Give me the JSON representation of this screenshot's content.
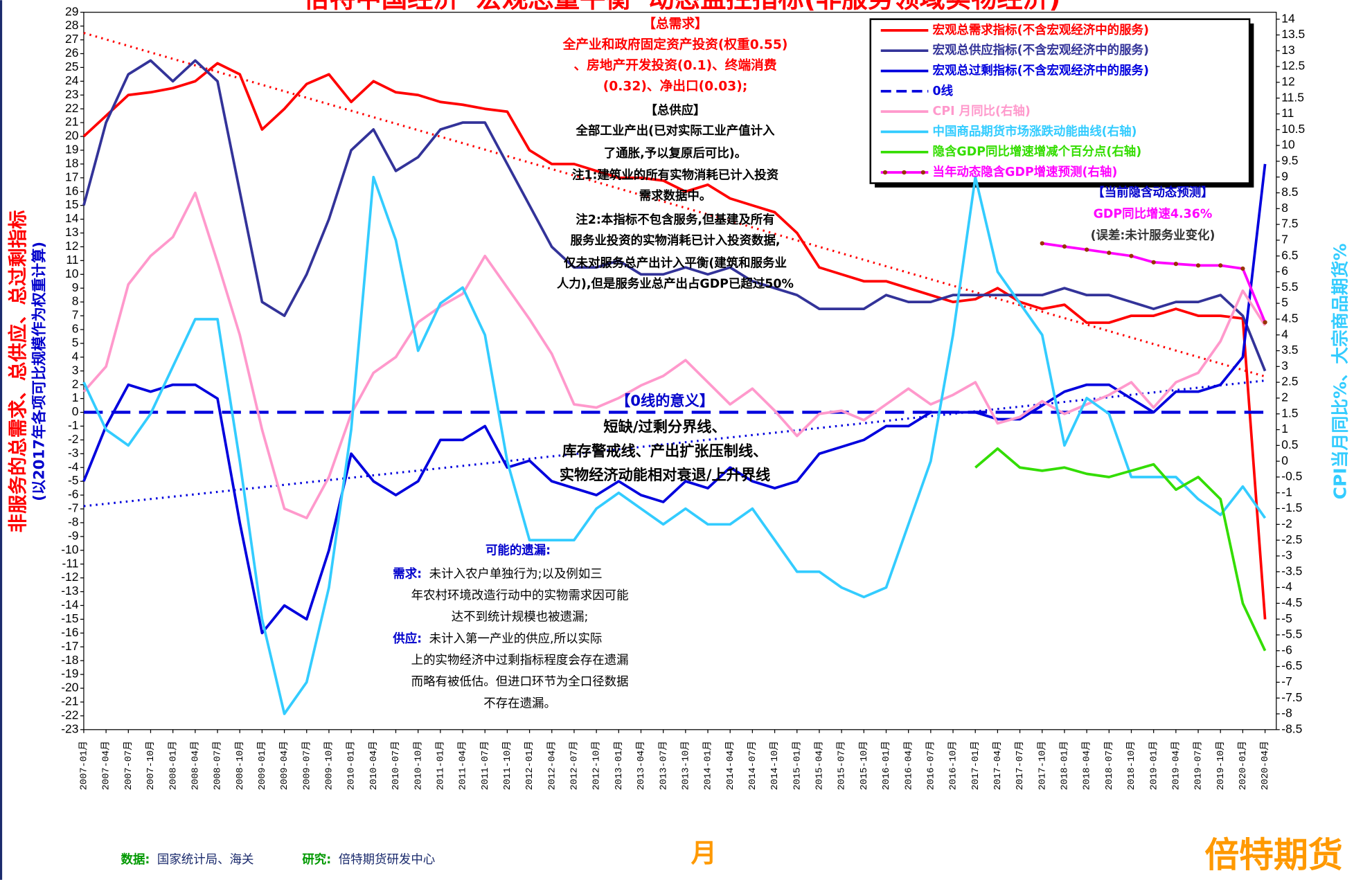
{
  "chart_data": {
    "type": "line",
    "title": "倍特中国经济“宏观总量平衡”动态监控指标(非服务领域实物经济)",
    "y_label": "非服务的总需求、总供应、总过剩指标",
    "y_sublabel": "(以2017年各项可比规模作为权重计算)",
    "y2_label": "CPI当月同比%、大宗商品期货%",
    "x_label": "月",
    "categories": [
      "2007-01月",
      "2007-04月",
      "2007-07月",
      "2007-10月",
      "2008-01月",
      "2008-04月",
      "2008-07月",
      "2008-10月",
      "2009-01月",
      "2009-04月",
      "2009-07月",
      "2009-10月",
      "2010-01月",
      "2010-04月",
      "2010-07月",
      "2010-10月",
      "2011-01月",
      "2011-04月",
      "2011-07月",
      "2011-10月",
      "2012-01月",
      "2012-04月",
      "2012-07月",
      "2012-10月",
      "2013-01月",
      "2013-04月",
      "2013-07月",
      "2013-10月",
      "2014-01月",
      "2014-04月",
      "2014-07月",
      "2014-10月",
      "2015-01月",
      "2015-04月",
      "2015-07月",
      "2015-10月",
      "2016-01月",
      "2016-04月",
      "2016-07月",
      "2016-10月",
      "2017-01月",
      "2017-04月",
      "2017-07月",
      "2017-10月",
      "2018-01月",
      "2018-04月",
      "2018-07月",
      "2018-10月",
      "2019-01月",
      "2019-04月",
      "2019-07月",
      "2019-10月",
      "2020-01月",
      "2020-04月"
    ],
    "ylim": [
      -23,
      29
    ],
    "yticks": [
      -23,
      -22,
      -21,
      -20,
      -19,
      -18,
      -17,
      -16,
      -15,
      -14,
      -13,
      -12,
      -11,
      -10,
      -9,
      -8,
      -7,
      -6,
      -5,
      -4,
      -3,
      -2,
      -1,
      0,
      1,
      2,
      3,
      4,
      5,
      6,
      7,
      8,
      9,
      10,
      11,
      12,
      13,
      14,
      15,
      16,
      17,
      18,
      19,
      20,
      21,
      22,
      23,
      24,
      25,
      26,
      27,
      28,
      29
    ],
    "y2lim": [
      -8.5,
      14
    ],
    "y2ticks": [
      -8.5,
      -8,
      -7.5,
      -7,
      -6.5,
      -6,
      -5.5,
      -5,
      -4.5,
      -4,
      -3.5,
      -3,
      -2.5,
      -2,
      -1.5,
      -1,
      -0.5,
      0,
      0.5,
      1,
      1.5,
      2,
      2.5,
      3,
      3.5,
      4,
      4.5,
      5,
      5.5,
      6,
      6.5,
      7,
      7.5,
      8,
      8.5,
      9,
      9.5,
      10,
      10.5,
      11,
      11.5,
      12,
      12.5,
      13,
      13.5,
      14
    ],
    "series": [
      {
        "name": "宏观总需求指标(不含宏观经济中的服务)",
        "color": "#ff0000",
        "values": [
          20,
          21.5,
          23,
          23.2,
          23.5,
          24,
          25.3,
          24.5,
          20.5,
          22,
          23.8,
          24.5,
          22.5,
          24,
          23.2,
          23,
          22.5,
          22.3,
          22,
          21.8,
          19,
          18,
          18,
          17.5,
          17,
          17,
          16.8,
          16,
          16.5,
          15.5,
          15,
          14.5,
          13,
          10.5,
          10,
          9.5,
          9.5,
          9,
          8.5,
          8,
          8.2,
          9,
          8,
          7.5,
          7.8,
          6.5,
          6.5,
          7,
          7,
          7.5,
          7,
          7,
          6.8,
          -15
        ]
      },
      {
        "name": "宏观总供应指标(不含宏观经济中的服务)",
        "color": "#333399",
        "values": [
          15,
          21,
          24.5,
          25.5,
          24,
          25.5,
          24,
          16,
          8,
          7,
          10,
          14,
          19,
          20.5,
          17.5,
          18.5,
          20.5,
          21,
          21,
          18,
          15,
          12,
          10.5,
          10.5,
          11,
          10,
          10,
          10.5,
          10,
          10.5,
          9.5,
          9,
          8.5,
          7.5,
          7.5,
          7.5,
          8.5,
          8,
          8,
          8.5,
          8.5,
          8.5,
          8.5,
          8.5,
          9,
          8.5,
          8.5,
          8,
          7.5,
          8,
          8,
          8.5,
          7,
          3
        ]
      },
      {
        "name": "宏观总过剩指标(不含宏观经济中的服务)",
        "color": "#0000dd",
        "values": [
          -5,
          -1,
          2,
          1.5,
          2,
          2,
          1,
          -8,
          -16,
          -14,
          -15,
          -10,
          -3,
          -5,
          -6,
          -5,
          -2,
          -2,
          -1,
          -4,
          -3.5,
          -5,
          -5.5,
          -6,
          -5,
          -6,
          -6.5,
          -5,
          -5.5,
          -4,
          -5,
          -5.5,
          -5,
          -3,
          -2.5,
          -2,
          -1,
          -1,
          0,
          0,
          0,
          -0.5,
          -0.5,
          0.5,
          1.5,
          2,
          2,
          1,
          0,
          1.5,
          1.5,
          2,
          4,
          18
        ]
      },
      {
        "name": "0线",
        "color": "#0000dd",
        "dash": true,
        "values": [
          0,
          0,
          0,
          0,
          0,
          0,
          0,
          0,
          0,
          0,
          0,
          0,
          0,
          0,
          0,
          0,
          0,
          0,
          0,
          0,
          0,
          0,
          0,
          0,
          0,
          0,
          0,
          0,
          0,
          0,
          0,
          0,
          0,
          0,
          0,
          0,
          0,
          0,
          0,
          0,
          0,
          0,
          0,
          0,
          0,
          0,
          0,
          0,
          0,
          0,
          0,
          0,
          0,
          0
        ]
      },
      {
        "name": "CPI 月同比(右轴)",
        "color": "#ff99cc",
        "axis": "y2",
        "values": [
          2.2,
          3,
          5.6,
          6.5,
          7.1,
          8.5,
          6.3,
          4,
          1,
          -1.5,
          -1.8,
          -0.5,
          1.5,
          2.8,
          3.3,
          4.4,
          4.9,
          5.3,
          6.5,
          5.5,
          4.5,
          3.4,
          1.8,
          1.7,
          2,
          2.4,
          2.7,
          3.2,
          2.5,
          1.8,
          2.3,
          1.6,
          0.8,
          1.5,
          1.6,
          1.3,
          1.8,
          2.3,
          1.8,
          2.1,
          2.5,
          1.2,
          1.4,
          1.9,
          1.5,
          1.8,
          2.1,
          2.5,
          1.7,
          2.5,
          2.8,
          3.8,
          5.4,
          4.3
        ]
      },
      {
        "name": "中国商品期货市场涨跌动能曲线(右轴)",
        "color": "#33ccff",
        "axis": "y2",
        "values": [
          2.5,
          1,
          0.5,
          1.5,
          3,
          4.5,
          4.5,
          0,
          -5,
          -8,
          -7,
          -4,
          1,
          9,
          7,
          3.5,
          5,
          5.5,
          4,
          0,
          -2.5,
          -2.5,
          -2.5,
          -1.5,
          -1,
          -1.5,
          -2,
          -1.5,
          -2,
          -2,
          -1.5,
          -2.5,
          -3.5,
          -3.5,
          -4,
          -4.3,
          -4,
          -2,
          0,
          4,
          9,
          6,
          5,
          4,
          0.5,
          2,
          1.5,
          -0.5,
          -0.5,
          -0.5,
          -1.2,
          -1.7,
          -0.8,
          -1.8
        ]
      },
      {
        "name": "隐含GDP同比增速增减个百分点(右轴)",
        "color": "#33dd00",
        "axis": "y2",
        "values": [
          null,
          null,
          null,
          null,
          null,
          null,
          null,
          null,
          null,
          null,
          null,
          null,
          null,
          null,
          null,
          null,
          null,
          null,
          null,
          null,
          null,
          null,
          null,
          null,
          null,
          null,
          null,
          null,
          null,
          null,
          null,
          null,
          null,
          null,
          null,
          null,
          null,
          null,
          null,
          null,
          -0.2,
          0.4,
          -0.2,
          -0.3,
          -0.2,
          -0.4,
          -0.5,
          -0.3,
          -0.1,
          -0.9,
          -0.5,
          -1.2,
          -4.5,
          -6
        ]
      },
      {
        "name": "当年动态隐含GDP增速预测(右轴)",
        "color": "#ff00ff",
        "marker_color": "#993300",
        "axis": "y2",
        "values": [
          null,
          null,
          null,
          null,
          null,
          null,
          null,
          null,
          null,
          null,
          null,
          null,
          null,
          null,
          null,
          null,
          null,
          null,
          null,
          null,
          null,
          null,
          null,
          null,
          null,
          null,
          null,
          null,
          null,
          null,
          null,
          null,
          null,
          null,
          null,
          null,
          null,
          null,
          null,
          null,
          null,
          null,
          null,
          6.9,
          6.8,
          6.7,
          6.6,
          6.5,
          6.3,
          6.25,
          6.2,
          6.2,
          6.1,
          4.4
        ]
      }
    ],
    "trendlines": [
      {
        "color": "#ff0000",
        "values": [
          27.5,
          2.6
        ]
      },
      {
        "color": "#0000dd",
        "values": [
          -6.8,
          2.3
        ]
      }
    ],
    "demand_note": [
      "【总需求】",
      "全产业和政府固定资产投资(权重0.55)",
      "、房地产开发投资(0.1)、终端消费",
      "(0.32)、净出口(0.03);"
    ],
    "supply_note": [
      "【总供应】",
      "全部工业产出(已对实际工业产值计入",
      "了通胀,予以复原后可比)。",
      "注1:建筑业的所有实物消耗已计入投资",
      "需求数据中。",
      "注2:本指标不包含服务,但基建及所有",
      "服务业投资的实物消耗已计入投资数据,",
      "仅未对服务总产出计入平衡(建筑和服务业",
      "人力),但是服务业总产出占GDP已超过50%"
    ],
    "zero_note": [
      "【0线的意义】",
      "短缺/过剩分界线、",
      "库存警戒线、产出扩张压制线、",
      "实物经济动能相对衰退/上升界线"
    ],
    "omissions": {
      "title": "可能的遗漏:",
      "demand_label": "需求:",
      "demand": [
        "未计入农户单独行为;以及例如三",
        "年农村环境改造行动中的实物需求因可能",
        "达不到统计规模也被遗漏;"
      ],
      "supply_label": "供应:",
      "supply": [
        "未计入第一产业的供应,所以实际",
        "上的实物经济中过剩指标程度会存在遗漏",
        "而略有被低估。但进口环节为全口径数据",
        "不存在遗漏。"
      ]
    },
    "forecast_note": [
      "【当前隐含动态预测】",
      "GDP同比增速4.36%",
      "(误差:未计服务业变化)"
    ],
    "footer": {
      "data_label": "数据:",
      "data": "国家统计局、海关",
      "research_label": "研究:",
      "research": "倍特期货研发中心"
    },
    "logo": "倍特期货"
  }
}
